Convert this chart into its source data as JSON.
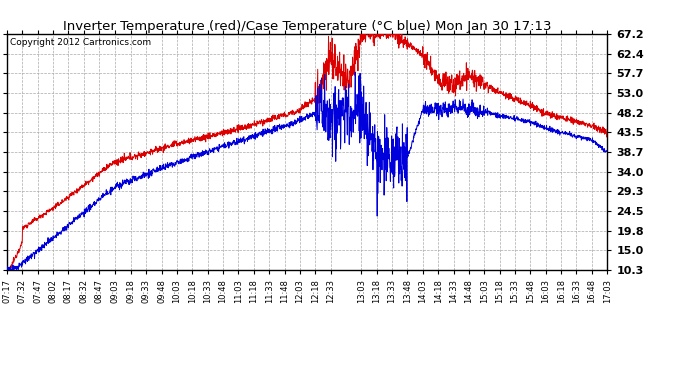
{
  "title": "Inverter Temperature (red)/Case Temperature (°C blue) Mon Jan 30 17:13",
  "copyright": "Copyright 2012 Cartronics.com",
  "yticks": [
    10.3,
    15.0,
    19.8,
    24.5,
    29.3,
    34.0,
    38.7,
    43.5,
    48.2,
    53.0,
    57.7,
    62.4,
    67.2
  ],
  "ymin": 10.3,
  "ymax": 67.2,
  "bg_color": "#ffffff",
  "plot_bg_color": "#ffffff",
  "grid_color": "#aaaaaa",
  "red_color": "#dd0000",
  "blue_color": "#0000dd",
  "start_hhmm": "07:17",
  "end_hhmm": "17:03",
  "xtick_labels": [
    "07:17",
    "07:32",
    "07:47",
    "08:02",
    "08:17",
    "08:32",
    "08:47",
    "09:03",
    "09:18",
    "09:33",
    "09:48",
    "10:03",
    "10:18",
    "10:33",
    "10:48",
    "11:03",
    "11:18",
    "11:33",
    "11:48",
    "12:03",
    "12:18",
    "12:33",
    "13:03",
    "13:18",
    "13:33",
    "13:48",
    "14:03",
    "14:18",
    "14:33",
    "14:48",
    "15:03",
    "15:18",
    "15:33",
    "15:48",
    "16:03",
    "16:18",
    "16:33",
    "16:48",
    "17:03"
  ]
}
